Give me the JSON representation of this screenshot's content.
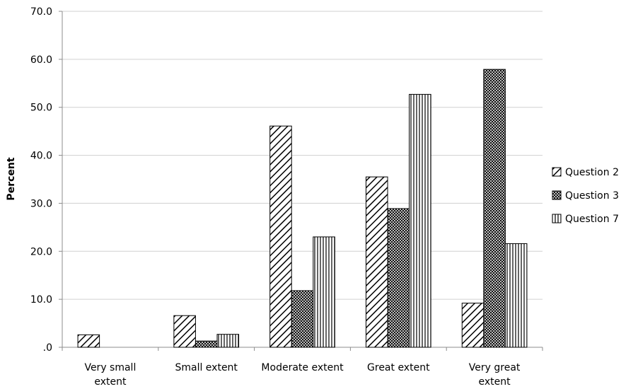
{
  "chart_data": {
    "type": "bar",
    "ylabel": "Percent",
    "xlabel": "",
    "ylim": [
      0,
      70
    ],
    "y_ticks": [
      ".0",
      "10.0",
      "20.0",
      "30.0",
      "40.0",
      "50.0",
      "60.0",
      "70.0"
    ],
    "categories": [
      [
        "Very small",
        "extent"
      ],
      [
        "Small extent"
      ],
      [
        "Moderate extent"
      ],
      [
        "Great extent"
      ],
      [
        "Very great",
        "extent"
      ]
    ],
    "series": [
      {
        "name": "Question 2",
        "pattern": "diagonal",
        "values": [
          2.6,
          6.6,
          46.1,
          35.5,
          9.2
        ]
      },
      {
        "name": "Question 3",
        "pattern": "crosshatch",
        "values": [
          0,
          1.3,
          11.8,
          28.9,
          57.9
        ]
      },
      {
        "name": "Question 7",
        "pattern": "vertical",
        "values": [
          0,
          2.7,
          23.0,
          52.7,
          21.6
        ]
      }
    ],
    "grid": true,
    "legend_position": "right",
    "colors": {
      "bar_stroke": "#000000",
      "gridline": "#d0d0d0",
      "axis": "#8c8c8c"
    }
  }
}
